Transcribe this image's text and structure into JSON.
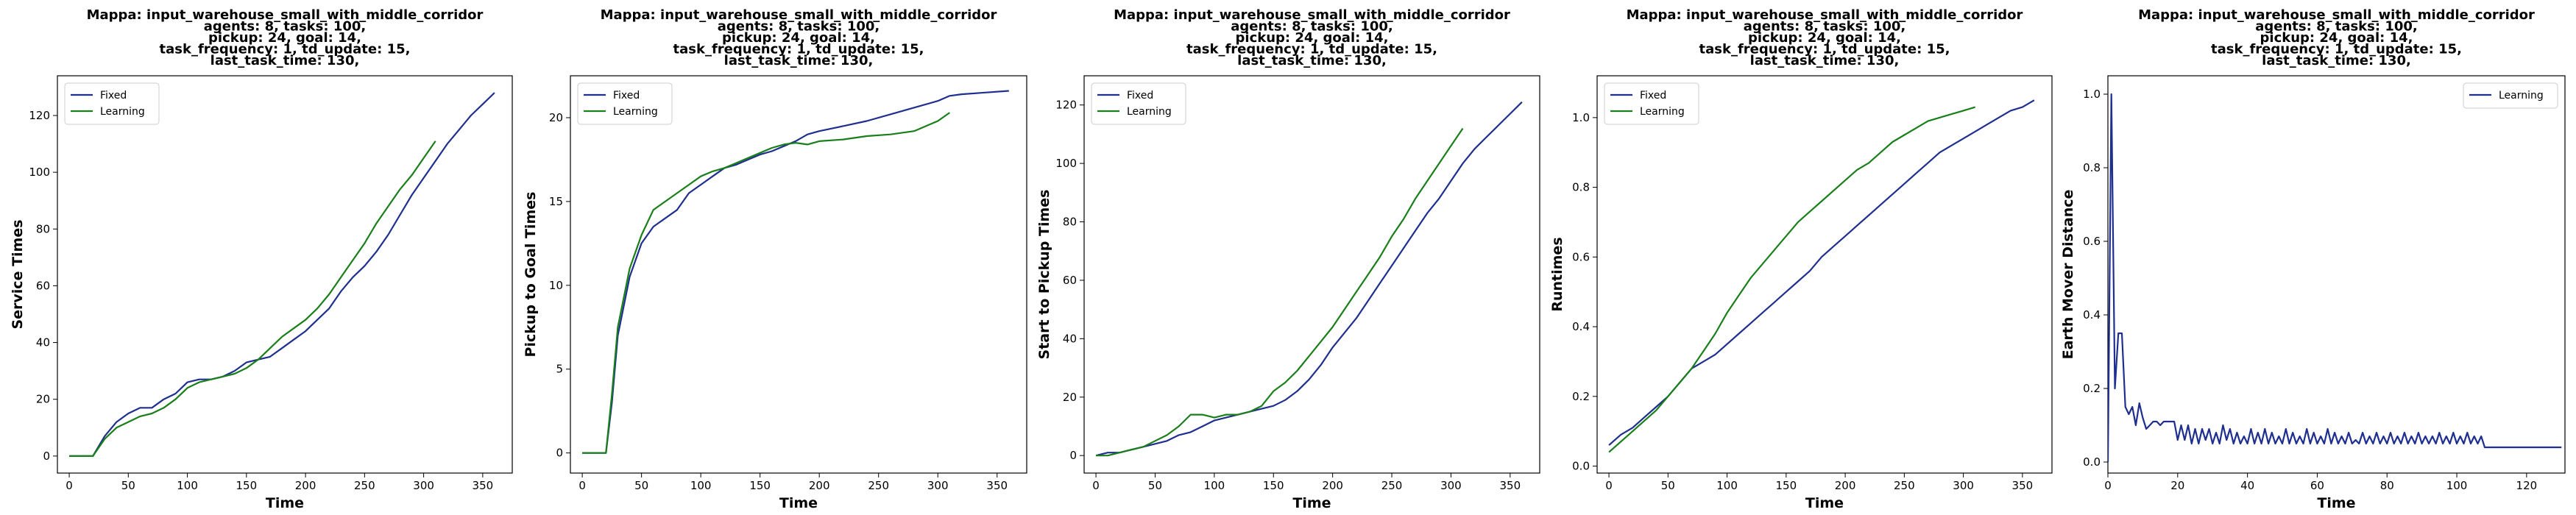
{
  "chart_data": [
    {
      "type": "line",
      "title": [
        "Mappa: input_warehouse_small_with_middle_corridor",
        "agents: 8, tasks: 100,",
        "pickup: 24, goal: 14,",
        "task_frequency: 1, td_update: 15,",
        "last_task_time: 130,"
      ],
      "xlabel": "Time",
      "ylabel": "Service Times",
      "xlim": [
        -10,
        375
      ],
      "ylim": [
        -6,
        134
      ],
      "xticks": [
        0,
        50,
        100,
        150,
        200,
        250,
        300,
        350
      ],
      "yticks": [
        0,
        20,
        40,
        60,
        80,
        100,
        120
      ],
      "legend": "top-left",
      "grid": false,
      "series": [
        {
          "name": "Fixed",
          "color": "#1f2f8f",
          "x": [
            0,
            10,
            20,
            30,
            40,
            50,
            60,
            70,
            80,
            90,
            100,
            110,
            120,
            130,
            140,
            150,
            160,
            170,
            180,
            190,
            200,
            210,
            220,
            230,
            240,
            250,
            260,
            270,
            280,
            290,
            300,
            310,
            320,
            330,
            340,
            350,
            360
          ],
          "values": [
            0,
            0,
            0,
            7,
            12,
            15,
            17,
            17,
            20,
            22,
            26,
            27,
            27,
            28,
            30,
            33,
            34,
            35,
            38,
            41,
            44,
            48,
            52,
            58,
            63,
            67,
            72,
            78,
            85,
            92,
            98,
            104,
            110,
            115,
            120,
            124,
            128
          ]
        },
        {
          "name": "Learning",
          "color": "#1a7f1a",
          "x": [
            0,
            10,
            20,
            30,
            40,
            50,
            60,
            70,
            80,
            90,
            100,
            110,
            120,
            130,
            140,
            150,
            160,
            170,
            180,
            190,
            200,
            210,
            220,
            230,
            240,
            250,
            260,
            270,
            280,
            290,
            300,
            310
          ],
          "values": [
            0,
            0,
            0,
            6,
            10,
            12,
            14,
            15,
            17,
            20,
            24,
            26,
            27,
            28,
            29,
            31,
            34,
            38,
            42,
            45,
            48,
            52,
            57,
            63,
            69,
            75,
            82,
            88,
            94,
            99,
            105,
            111
          ]
        }
      ]
    },
    {
      "type": "line",
      "title": [
        "Mappa: input_warehouse_small_with_middle_corridor",
        "agents: 8, tasks: 100,",
        "pickup: 24, goal: 14,",
        "task_frequency: 1, td_update: 15,",
        "last_task_time: 130,"
      ],
      "xlabel": "Time",
      "ylabel": "Pickup to Goal Times",
      "xlim": [
        -10,
        375
      ],
      "ylim": [
        -1.2,
        22.5
      ],
      "xticks": [
        0,
        50,
        100,
        150,
        200,
        250,
        300,
        350
      ],
      "yticks": [
        0,
        5,
        10,
        15,
        20
      ],
      "legend": "top-left",
      "grid": false,
      "series": [
        {
          "name": "Fixed",
          "color": "#1f2f8f",
          "x": [
            0,
            10,
            20,
            25,
            30,
            40,
            50,
            60,
            70,
            80,
            90,
            100,
            110,
            120,
            130,
            140,
            150,
            160,
            170,
            180,
            190,
            200,
            220,
            240,
            260,
            280,
            300,
            310,
            320,
            340,
            360
          ],
          "values": [
            0,
            0,
            0,
            3,
            7,
            10.5,
            12.5,
            13.5,
            14,
            14.5,
            15.5,
            16,
            16.5,
            17,
            17.2,
            17.5,
            17.8,
            18,
            18.3,
            18.6,
            19,
            19.2,
            19.5,
            19.8,
            20.2,
            20.6,
            21,
            21.3,
            21.4,
            21.5,
            21.6
          ]
        },
        {
          "name": "Learning",
          "color": "#1a7f1a",
          "x": [
            0,
            10,
            20,
            25,
            30,
            40,
            50,
            60,
            70,
            80,
            90,
            100,
            110,
            120,
            130,
            140,
            150,
            160,
            170,
            180,
            190,
            200,
            220,
            240,
            260,
            280,
            300,
            310
          ],
          "values": [
            0,
            0,
            0,
            3.5,
            7.5,
            11,
            13,
            14.5,
            15,
            15.5,
            16,
            16.5,
            16.8,
            17,
            17.3,
            17.6,
            17.9,
            18.2,
            18.4,
            18.5,
            18.4,
            18.6,
            18.7,
            18.9,
            19,
            19.2,
            19.8,
            20.3
          ]
        }
      ]
    },
    {
      "type": "line",
      "title": [
        "Mappa: input_warehouse_small_with_middle_corridor",
        "agents: 8, tasks: 100,",
        "pickup: 24, goal: 14,",
        "task_frequency: 1, td_update: 15,",
        "last_task_time: 130,"
      ],
      "xlabel": "Time",
      "ylabel": "Start to Pickup Times",
      "xlim": [
        -10,
        375
      ],
      "ylim": [
        -6,
        130
      ],
      "xticks": [
        0,
        50,
        100,
        150,
        200,
        250,
        300,
        350
      ],
      "yticks": [
        0,
        20,
        40,
        60,
        80,
        100,
        120
      ],
      "legend": "top-left",
      "grid": false,
      "series": [
        {
          "name": "Fixed",
          "color": "#1f2f8f",
          "x": [
            0,
            10,
            20,
            30,
            40,
            50,
            60,
            70,
            80,
            90,
            100,
            110,
            120,
            130,
            140,
            150,
            160,
            170,
            180,
            190,
            200,
            210,
            220,
            230,
            240,
            250,
            260,
            270,
            280,
            290,
            300,
            310,
            320,
            330,
            340,
            350,
            360
          ],
          "values": [
            0,
            1,
            1,
            2,
            3,
            4,
            5,
            7,
            8,
            10,
            12,
            13,
            14,
            15,
            16,
            17,
            19,
            22,
            26,
            31,
            37,
            42,
            47,
            53,
            59,
            65,
            71,
            77,
            83,
            88,
            94,
            100,
            105,
            109,
            113,
            117,
            121
          ]
        },
        {
          "name": "Learning",
          "color": "#1a7f1a",
          "x": [
            0,
            10,
            20,
            30,
            40,
            50,
            60,
            70,
            80,
            90,
            100,
            110,
            120,
            130,
            140,
            150,
            160,
            170,
            180,
            190,
            200,
            210,
            220,
            230,
            240,
            250,
            260,
            270,
            280,
            290,
            300,
            310
          ],
          "values": [
            0,
            0,
            1,
            2,
            3,
            5,
            7,
            10,
            14,
            14,
            13,
            14,
            14,
            15,
            17,
            22,
            25,
            29,
            34,
            39,
            44,
            50,
            56,
            62,
            68,
            75,
            81,
            88,
            94,
            100,
            106,
            112
          ]
        }
      ]
    },
    {
      "type": "line",
      "title": [
        "Mappa: input_warehouse_small_with_middle_corridor",
        "agents: 8, tasks: 100,",
        "pickup: 24, goal: 14,",
        "task_frequency: 1, td_update: 15,",
        "last_task_time: 130,"
      ],
      "xlabel": "Time",
      "ylabel": "Runtimes",
      "xlim": [
        -10,
        375
      ],
      "ylim": [
        -0.02,
        1.12
      ],
      "xticks": [
        0,
        50,
        100,
        150,
        200,
        250,
        300,
        350
      ],
      "yticks": [
        0.0,
        0.2,
        0.4,
        0.6,
        0.8,
        1.0
      ],
      "legend": "top-left",
      "grid": false,
      "series": [
        {
          "name": "Fixed",
          "color": "#1f2f8f",
          "x": [
            0,
            10,
            20,
            30,
            40,
            50,
            60,
            70,
            80,
            90,
            100,
            110,
            120,
            130,
            140,
            150,
            160,
            170,
            180,
            190,
            200,
            210,
            220,
            230,
            240,
            250,
            260,
            270,
            280,
            290,
            300,
            310,
            320,
            330,
            340,
            350,
            360
          ],
          "values": [
            0.06,
            0.09,
            0.11,
            0.14,
            0.17,
            0.2,
            0.24,
            0.28,
            0.3,
            0.32,
            0.35,
            0.38,
            0.41,
            0.44,
            0.47,
            0.5,
            0.53,
            0.56,
            0.6,
            0.63,
            0.66,
            0.69,
            0.72,
            0.75,
            0.78,
            0.81,
            0.84,
            0.87,
            0.9,
            0.92,
            0.94,
            0.96,
            0.98,
            1.0,
            1.02,
            1.03,
            1.05
          ]
        },
        {
          "name": "Learning",
          "color": "#1a7f1a",
          "x": [
            0,
            10,
            20,
            30,
            40,
            50,
            60,
            70,
            80,
            90,
            100,
            110,
            120,
            130,
            140,
            150,
            160,
            170,
            180,
            190,
            200,
            210,
            220,
            230,
            240,
            250,
            260,
            270,
            280,
            290,
            300,
            310
          ],
          "values": [
            0.04,
            0.07,
            0.1,
            0.13,
            0.16,
            0.2,
            0.24,
            0.28,
            0.33,
            0.38,
            0.44,
            0.49,
            0.54,
            0.58,
            0.62,
            0.66,
            0.7,
            0.73,
            0.76,
            0.79,
            0.82,
            0.85,
            0.87,
            0.9,
            0.93,
            0.95,
            0.97,
            0.99,
            1.0,
            1.01,
            1.02,
            1.03
          ]
        }
      ]
    },
    {
      "type": "line",
      "title": [
        "Mappa: input_warehouse_small_with_middle_corridor",
        "agents: 8, tasks: 100,",
        "pickup: 24, goal: 14,",
        "task_frequency: 1, td_update: 15,",
        "last_task_time: 130,"
      ],
      "xlabel": "Time",
      "ylabel": "Earth Mover Distance",
      "xlim": [
        0,
        131
      ],
      "ylim": [
        -0.03,
        1.05
      ],
      "xticks": [
        0,
        20,
        40,
        60,
        80,
        100,
        120
      ],
      "yticks": [
        0.0,
        0.2,
        0.4,
        0.6,
        0.8,
        1.0
      ],
      "legend": "top-right",
      "grid": false,
      "series": [
        {
          "name": "Learning",
          "color": "#1f2f8f",
          "x": [
            0,
            1,
            2,
            3,
            4,
            5,
            6,
            7,
            8,
            9,
            10,
            11,
            12,
            13,
            14,
            15,
            16,
            17,
            18,
            19,
            20,
            21,
            22,
            23,
            24,
            25,
            26,
            27,
            28,
            29,
            30,
            31,
            32,
            33,
            34,
            35,
            36,
            37,
            38,
            39,
            40,
            41,
            42,
            43,
            44,
            45,
            46,
            47,
            48,
            49,
            50,
            51,
            52,
            53,
            54,
            55,
            56,
            57,
            58,
            59,
            60,
            61,
            62,
            63,
            64,
            65,
            66,
            67,
            68,
            69,
            70,
            71,
            72,
            73,
            74,
            75,
            76,
            77,
            78,
            79,
            80,
            81,
            82,
            83,
            84,
            85,
            86,
            87,
            88,
            89,
            90,
            91,
            92,
            93,
            94,
            95,
            96,
            97,
            98,
            99,
            100,
            101,
            102,
            103,
            104,
            105,
            106,
            107,
            108,
            110,
            115,
            120,
            125,
            130
          ],
          "values": [
            0.0,
            1.0,
            0.2,
            0.35,
            0.35,
            0.15,
            0.13,
            0.15,
            0.1,
            0.16,
            0.12,
            0.09,
            0.1,
            0.11,
            0.11,
            0.1,
            0.11,
            0.11,
            0.11,
            0.11,
            0.06,
            0.1,
            0.06,
            0.1,
            0.05,
            0.09,
            0.05,
            0.09,
            0.06,
            0.09,
            0.05,
            0.08,
            0.05,
            0.1,
            0.06,
            0.09,
            0.05,
            0.08,
            0.05,
            0.07,
            0.05,
            0.09,
            0.05,
            0.08,
            0.05,
            0.09,
            0.05,
            0.08,
            0.05,
            0.07,
            0.05,
            0.09,
            0.05,
            0.08,
            0.05,
            0.07,
            0.05,
            0.09,
            0.05,
            0.08,
            0.05,
            0.07,
            0.05,
            0.09,
            0.05,
            0.08,
            0.05,
            0.07,
            0.05,
            0.08,
            0.05,
            0.06,
            0.05,
            0.08,
            0.05,
            0.07,
            0.05,
            0.08,
            0.05,
            0.07,
            0.05,
            0.08,
            0.05,
            0.07,
            0.05,
            0.08,
            0.05,
            0.07,
            0.05,
            0.08,
            0.05,
            0.07,
            0.05,
            0.07,
            0.05,
            0.08,
            0.05,
            0.07,
            0.05,
            0.08,
            0.05,
            0.07,
            0.05,
            0.08,
            0.05,
            0.07,
            0.05,
            0.07,
            0.04,
            0.04,
            0.04,
            0.04,
            0.04,
            0.04
          ]
        }
      ]
    }
  ]
}
